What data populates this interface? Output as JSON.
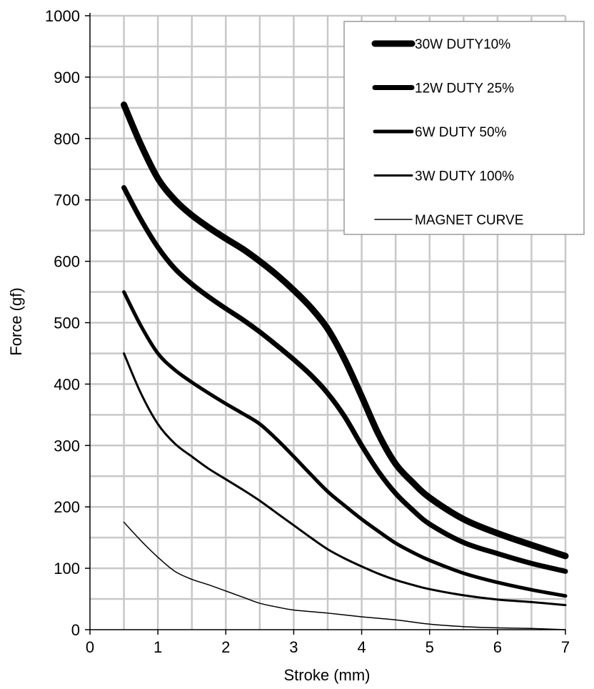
{
  "chart_data": {
    "type": "line",
    "title": "",
    "xlabel": "Stroke (mm)",
    "ylabel": "Force (gf)",
    "xlim": [
      0,
      7
    ],
    "ylim": [
      0,
      1000
    ],
    "x_ticks": [
      0,
      1,
      2,
      3,
      4,
      5,
      6,
      7
    ],
    "y_ticks": [
      0,
      100,
      200,
      300,
      400,
      500,
      600,
      700,
      800,
      900,
      1000
    ],
    "x_minor_step": 0.5,
    "y_minor_step": 50,
    "grid": true,
    "legend_position": "top-right",
    "line_color": "#000000",
    "series": [
      {
        "name": "30W DUTY10%",
        "weight": 9,
        "x": [
          0.5,
          0.75,
          1.0,
          1.25,
          1.5,
          1.75,
          2.0,
          2.25,
          2.5,
          2.75,
          3.0,
          3.25,
          3.5,
          3.75,
          4.0,
          4.25,
          4.5,
          4.75,
          5.0,
          5.5,
          6.0,
          6.5,
          7.0
        ],
        "y": [
          855,
          790,
          735,
          700,
          675,
          655,
          637,
          620,
          600,
          578,
          553,
          525,
          490,
          440,
          380,
          318,
          270,
          240,
          215,
          180,
          157,
          138,
          120
        ]
      },
      {
        "name": "12W DUTY 25%",
        "weight": 7,
        "x": [
          0.5,
          0.75,
          1.0,
          1.25,
          1.5,
          1.75,
          2.0,
          2.25,
          2.5,
          2.75,
          3.0,
          3.25,
          3.5,
          3.75,
          4.0,
          4.25,
          4.5,
          4.75,
          5.0,
          5.5,
          6.0,
          6.5,
          7.0
        ],
        "y": [
          720,
          668,
          623,
          588,
          563,
          542,
          523,
          505,
          485,
          463,
          440,
          415,
          385,
          347,
          300,
          257,
          222,
          195,
          172,
          142,
          124,
          108,
          95
        ]
      },
      {
        "name": "6W DUTY 50%",
        "weight": 5,
        "x": [
          0.5,
          0.75,
          1.0,
          1.25,
          1.5,
          1.75,
          2.0,
          2.25,
          2.5,
          2.75,
          3.0,
          3.25,
          3.5,
          3.75,
          4.0,
          4.25,
          4.5,
          4.75,
          5.0,
          5.5,
          6.0,
          6.5,
          7.0
        ],
        "y": [
          550,
          495,
          450,
          423,
          403,
          385,
          368,
          352,
          335,
          310,
          282,
          253,
          225,
          202,
          180,
          160,
          141,
          126,
          113,
          92,
          77,
          65,
          55
        ]
      },
      {
        "name": "3W DUTY 100%",
        "weight": 3,
        "x": [
          0.5,
          0.75,
          1.0,
          1.25,
          1.5,
          1.75,
          2.0,
          2.25,
          2.5,
          2.75,
          3.0,
          3.25,
          3.5,
          3.75,
          4.0,
          4.25,
          4.5,
          4.75,
          5.0,
          5.5,
          6.0,
          6.5,
          7.0
        ],
        "y": [
          450,
          385,
          335,
          303,
          282,
          262,
          245,
          228,
          210,
          190,
          170,
          150,
          131,
          116,
          103,
          91,
          81,
          73,
          66,
          56,
          49,
          45,
          40
        ]
      },
      {
        "name": "MAGNET CURVE",
        "weight": 1.5,
        "x": [
          0.5,
          0.75,
          1.0,
          1.25,
          1.5,
          1.75,
          2.0,
          2.25,
          2.5,
          2.75,
          3.0,
          3.5,
          4.0,
          4.5,
          5.0,
          5.5,
          6.0,
          6.5,
          7.0
        ],
        "y": [
          175,
          145,
          118,
          95,
          82,
          73,
          63,
          53,
          43,
          37,
          32,
          27,
          21,
          16,
          9,
          5,
          3,
          2,
          0
        ]
      }
    ]
  }
}
